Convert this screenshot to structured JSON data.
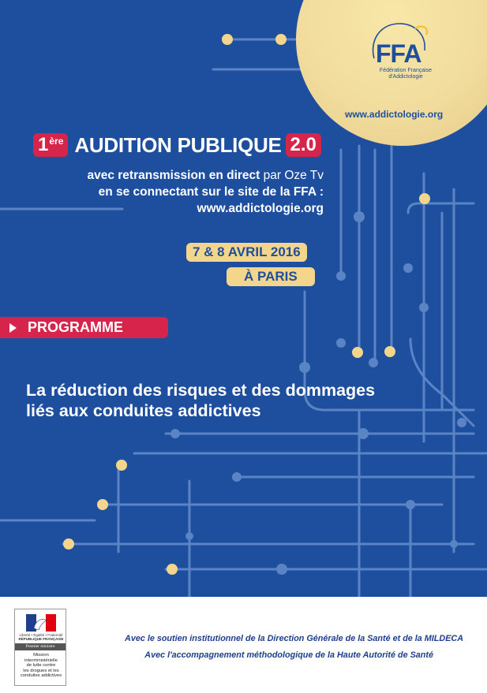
{
  "logo": {
    "letters": "FFA",
    "subtitle_line1": "Fédération Française",
    "subtitle_line2": "d'Addictologie",
    "website": "www.addictologie.org"
  },
  "title": {
    "ordinal_number": "1",
    "ordinal_suffix": "ère",
    "main": "AUDITION PUBLIQUE",
    "version": "2.0"
  },
  "broadcast": {
    "line1_bold": "avec retransmission en direct",
    "line1_light": " par Oze Tv",
    "line2": "en se connectant sur le site de la FFA :",
    "line3": "www.addictologie.org"
  },
  "event": {
    "dates": "7 & 8 AVRIL 2016",
    "location": "À PARIS"
  },
  "programme_label": "PROGRAMME",
  "headline": {
    "line1": "La réduction des risques et des dommages",
    "line2": "liés aux conduites addictives"
  },
  "footer": {
    "gov_logo": {
      "republic_line1": "Liberté • Égalité • Fraternité",
      "republic_line2": "RÉPUBLIQUE FRANÇAISE",
      "premier_ministre": "Premier ministre",
      "mission_line1": "Mission",
      "mission_line2": "interministérielle",
      "mission_line3": "de lutte contre",
      "mission_line4": "les drogues et les",
      "mission_line5": "conduites addictives"
    },
    "support_line1": "Avec le soutien institutionnel de la Direction Générale de la Santé et de la MILDECA",
    "support_line2": "Avec l'accompagnement méthodologique de la Haute Autorité de Santé"
  },
  "colors": {
    "background_blue": "#1e4f9f",
    "accent_red": "#d6244a",
    "accent_yellow": "#f3d68b",
    "line_blue": "#5a84c4"
  }
}
